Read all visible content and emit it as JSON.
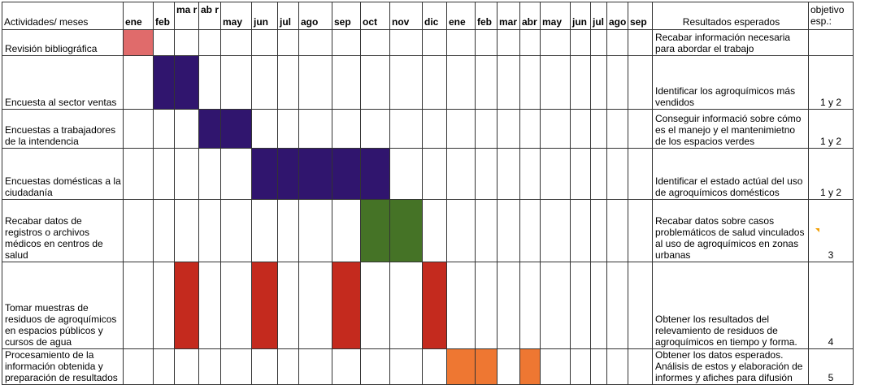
{
  "table": {
    "header": {
      "activities_label": "Actividades/ meses",
      "results_label": "Resultados esperados",
      "objective_label": "objetivo esp.:",
      "months": [
        "ene",
        "feb",
        "ma r",
        "ab r",
        "may",
        "jun",
        "jul",
        "ago",
        "sep",
        "oct",
        "nov",
        "dic",
        "ene",
        "feb",
        "mar",
        "abr",
        "may",
        "jun",
        "jul",
        "ago",
        "sep"
      ]
    },
    "rows": [
      {
        "activity": "Revisión bibliográfica",
        "result": "Recabar información necesaria para abordar el trabajo",
        "objective": "",
        "color": "#e06b6b",
        "months_active": [
          0
        ]
      },
      {
        "activity": "Encuesta al sector ventas",
        "result": "Identificar los agroquímicos más vendidos",
        "objective": "1 y 2",
        "color": "#30156e",
        "months_active": [
          1,
          2
        ]
      },
      {
        "activity": "Encuestas a trabajadores de la intendencia",
        "result": "Conseguir informació sobre cómo es el manejo y el mantenimietno de los espacios verdes",
        "objective": "1 y 2",
        "color": "#30156e",
        "months_active": [
          3,
          4
        ]
      },
      {
        "activity": "Encuestas domésticas a la ciudadanía",
        "result": "Identificar el estado actúal del uso de agroquímicos domésticos",
        "objective": "1 y 2",
        "color": "#30156e",
        "months_active": [
          5,
          6,
          7,
          8,
          9
        ]
      },
      {
        "activity": "Recabar datos de registros o archivos médicos en centros de salud",
        "result": "Recabar datos sobre casos problemáticos de salud vinculados al uso de agroquímicos en zonas urbanas",
        "objective": "3",
        "color": "#457326",
        "months_active": [
          9,
          10
        ]
      },
      {
        "activity": "Tomar muestras de residuos de agroquímicos en espacios públicos y cursos de agua",
        "result": "Obtener los resultados del relevamiento de residuos de agroquímicos en tiempo y forma.",
        "objective": "4",
        "color": "#c42a1e",
        "months_active": [
          2,
          5,
          8,
          11
        ]
      },
      {
        "activity": "Procesamiento de la información obtenida y preparación de resultados",
        "result": "Obtener los datos esperados. Análisis de estos y elaboración de informes y afiches para difusión",
        "objective": "5",
        "color": "#ee7732",
        "months_active": [
          12,
          13,
          15
        ]
      }
    ]
  }
}
